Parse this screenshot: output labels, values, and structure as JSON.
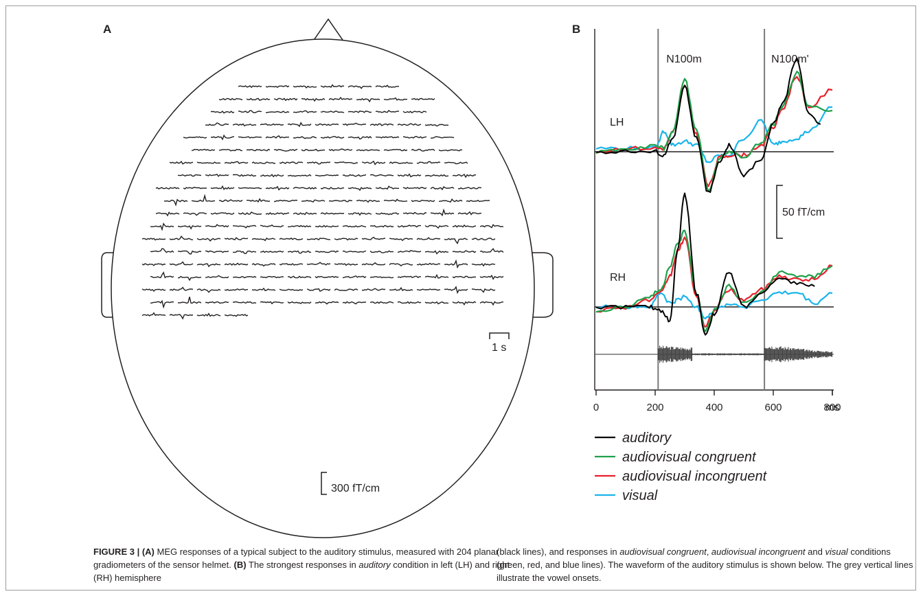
{
  "figure": {
    "panel_a_label": "A",
    "panel_b_label": "B",
    "panel_a": {
      "time_scale_label": "1 s",
      "amplitude_scale_label": "300 fT/cm",
      "sensor_count": 204
    },
    "caption": {
      "figure_label": "FIGURE 3 | ",
      "part_a_label": "(A)",
      "part_a_text": " MEG responses of a typical subject to the auditory stimulus, measured with 204 planar gradiometers of the sensor helmet. ",
      "part_b_label": "(B)",
      "part_b_text_1": " The strongest responses in ",
      "auditory_word": "auditory",
      "part_b_text_2": " condition in left (LH) and right (RH) hemisphere",
      "right_text_1": "(black lines), and responses in ",
      "av_congruent_word": "audiovisual congruent",
      "comma": ", ",
      "av_incongruent_word": "audiovisual incongruent",
      "right_text_2": " and ",
      "visual_word": "visual",
      "right_text_3": " conditions (green, red, and blue lines). The waveform of the auditory stimulus is shown below. The grey vertical lines illustrate the vowel onsets."
    }
  },
  "colors": {
    "auditory": "#000000",
    "audiovisual_congruent": "#1fa04a",
    "audiovisual_incongruent": "#e8202a",
    "visual": "#19b4ea",
    "grid_line": "#7a7a7a",
    "head_outline": "#231f20"
  },
  "chart_data": {
    "type": "line",
    "x_unit": "ms",
    "xlim": [
      0,
      800
    ],
    "x_ticks": [
      "0",
      "200",
      "400",
      "600",
      "800"
    ],
    "x_unit_label": "ms",
    "amplitude_scale_label": "50 fT/cm",
    "peak_labels": [
      "N100m",
      "N100m'"
    ],
    "vowel_onsets_ms": [
      210,
      570
    ],
    "legend": [
      {
        "label": "auditory",
        "color": "#000000"
      },
      {
        "label": "audiovisual congruent",
        "color": "#1fa04a"
      },
      {
        "label": "audiovisual incongruent",
        "color": "#e8202a"
      },
      {
        "label": "visual",
        "color": "#19b4ea"
      }
    ],
    "panels": [
      {
        "label": "LH",
        "series": [
          {
            "name": "auditory",
            "x": [
              0,
              100,
              200,
              230,
              260,
              300,
              340,
              380,
              420,
              450,
              500,
              560,
              600,
              630,
              680,
              720,
              760
            ],
            "y": [
              0,
              0,
              0,
              -5,
              20,
              95,
              20,
              -60,
              -15,
              10,
              -35,
              -10,
              40,
              70,
              135,
              55,
              40
            ]
          },
          {
            "name": "audiovisual congruent",
            "x": [
              0,
              100,
              200,
              230,
              260,
              300,
              340,
              380,
              420,
              450,
              500,
              560,
              600,
              630,
              680,
              720,
              800
            ],
            "y": [
              0,
              5,
              8,
              5,
              30,
              105,
              30,
              -55,
              -10,
              0,
              -10,
              15,
              40,
              65,
              115,
              65,
              60
            ]
          },
          {
            "name": "audiovisual incongruent",
            "x": [
              0,
              100,
              200,
              230,
              260,
              300,
              340,
              380,
              420,
              450,
              500,
              560,
              600,
              630,
              680,
              720,
              800
            ],
            "y": [
              0,
              5,
              5,
              5,
              28,
              95,
              25,
              -50,
              -8,
              -5,
              -5,
              10,
              35,
              62,
              110,
              65,
              90
            ]
          },
          {
            "name": "visual",
            "x": [
              0,
              100,
              200,
              230,
              260,
              300,
              340,
              380,
              420,
              450,
              500,
              560,
              600,
              630,
              680,
              720,
              800
            ],
            "y": [
              5,
              5,
              5,
              30,
              10,
              15,
              10,
              -15,
              -5,
              -5,
              20,
              45,
              10,
              15,
              20,
              30,
              65
            ]
          }
        ]
      },
      {
        "label": "RH",
        "series": [
          {
            "name": "auditory",
            "x": [
              0,
              100,
              180,
              220,
              250,
              275,
              300,
              340,
              370,
              400,
              450,
              500,
              560,
              620,
              680,
              740
            ],
            "y": [
              0,
              0,
              0,
              -5,
              -20,
              80,
              165,
              20,
              -40,
              -10,
              50,
              0,
              20,
              40,
              35,
              30
            ]
          },
          {
            "name": "audiovisual congruent",
            "x": [
              0,
              100,
              180,
              220,
              250,
              275,
              300,
              340,
              370,
              400,
              450,
              500,
              560,
              620,
              680,
              740,
              800
            ],
            "y": [
              -5,
              0,
              15,
              25,
              60,
              90,
              110,
              20,
              -35,
              -5,
              30,
              5,
              20,
              50,
              45,
              45,
              60
            ]
          },
          {
            "name": "audiovisual incongruent",
            "x": [
              0,
              100,
              180,
              220,
              250,
              275,
              300,
              340,
              370,
              400,
              450,
              500,
              560,
              620,
              680,
              740,
              800
            ],
            "y": [
              -5,
              0,
              10,
              20,
              45,
              80,
              100,
              15,
              -30,
              -5,
              25,
              10,
              25,
              45,
              40,
              40,
              60
            ]
          },
          {
            "name": "visual",
            "x": [
              0,
              100,
              180,
              220,
              250,
              275,
              300,
              340,
              370,
              400,
              450,
              500,
              560,
              620,
              680,
              740,
              800
            ],
            "y": [
              0,
              0,
              0,
              20,
              5,
              10,
              15,
              0,
              -15,
              -5,
              5,
              0,
              10,
              20,
              20,
              5,
              20
            ]
          }
        ]
      }
    ]
  }
}
